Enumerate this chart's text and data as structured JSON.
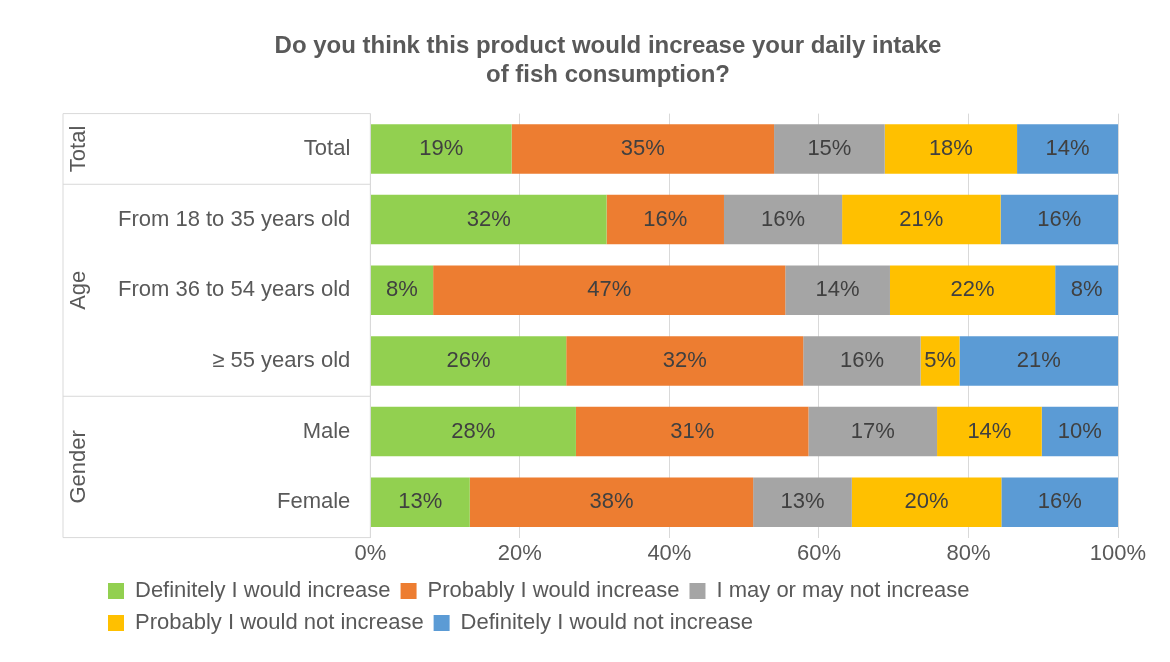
{
  "chart_data": {
    "type": "bar",
    "orientation": "horizontal",
    "stacked": true,
    "title": "Do you think this product would increase your daily intake of fish consumption?",
    "categories": [
      "Total",
      "From 18 to 35 years old",
      "From 36 to 54 years old",
      "≥ 55 years old",
      "Male",
      "Female"
    ],
    "series": [
      {
        "name": "Definitely I would increase",
        "color": "#92d050",
        "values": [
          18.9,
          31.6,
          8.4,
          26.2,
          27.5,
          13.3
        ],
        "value_labels": [
          "19%",
          "32%",
          "8%",
          "26%",
          "28%",
          "13%"
        ]
      },
      {
        "name": "Probably I would increase",
        "color": "#ed7d31",
        "values": [
          35.1,
          15.7,
          47.1,
          31.7,
          31.1,
          37.9
        ],
        "value_labels": [
          "35%",
          "16%",
          "47%",
          "32%",
          "31%",
          "38%"
        ]
      },
      {
        "name": "I may or may not increase",
        "color": "#a5a5a5",
        "values": [
          14.8,
          15.8,
          14.0,
          15.7,
          17.2,
          13.2
        ],
        "value_labels": [
          "15%",
          "16%",
          "14%",
          "16%",
          "17%",
          "13%"
        ]
      },
      {
        "name": "Probably I would not increase",
        "color": "#ffc000",
        "values": [
          17.7,
          21.2,
          22.1,
          5.2,
          14.0,
          20.0
        ],
        "value_labels": [
          "18%",
          "21%",
          "22%",
          "5%",
          "14%",
          "20%"
        ]
      },
      {
        "name": "Definitely I would not increase",
        "color": "#5b9bd5",
        "values": [
          13.5,
          15.7,
          8.4,
          21.2,
          10.2,
          15.6
        ],
        "value_labels": [
          "14%",
          "16%",
          "8%",
          "21%",
          "10%",
          "16%"
        ]
      }
    ],
    "xlim": [
      0,
      100
    ],
    "xticks": [
      {
        "value": 0,
        "label": "0%"
      },
      {
        "value": 20,
        "label": "20%"
      },
      {
        "value": 40,
        "label": "40%"
      },
      {
        "value": 60,
        "label": "60%"
      },
      {
        "value": 80,
        "label": "80%"
      },
      {
        "value": 100,
        "label": "100%"
      }
    ],
    "annotations": [
      "Total",
      "Age",
      "Gender"
    ],
    "grid": "x",
    "legend": "bottom"
  }
}
